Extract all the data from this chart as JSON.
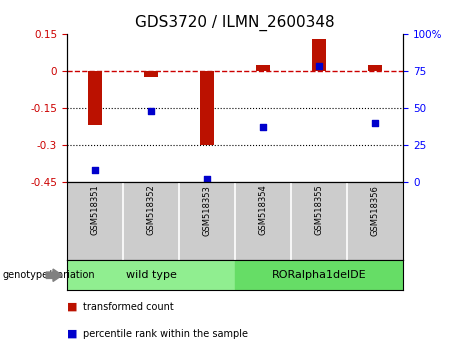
{
  "title": "GDS3720 / ILMN_2600348",
  "samples": [
    "GSM518351",
    "GSM518352",
    "GSM518353",
    "GSM518354",
    "GSM518355",
    "GSM518356"
  ],
  "group_labels": [
    "wild type",
    "RORalpha1delDE"
  ],
  "red_bars": [
    -0.22,
    -0.025,
    -0.3,
    0.025,
    0.13,
    0.025
  ],
  "blue_dots_pct": [
    8,
    48,
    2,
    37,
    78,
    40
  ],
  "left_ylim": [
    -0.45,
    0.15
  ],
  "left_yticks": [
    0.15,
    0.0,
    -0.15,
    -0.3,
    -0.45
  ],
  "left_ytick_labels": [
    "0.15",
    "0",
    "-0.15",
    "-0.3",
    "-0.45"
  ],
  "right_yticks": [
    0,
    25,
    50,
    75,
    100
  ],
  "right_ytick_labels": [
    "0",
    "25",
    "50",
    "75",
    "100%"
  ],
  "dotted_lines": [
    -0.15,
    -0.3
  ],
  "bar_color": "#BB1100",
  "dot_color": "#0000CC",
  "hline_color": "#CC0000",
  "legend_red_label": "transformed count",
  "legend_blue_label": "percentile rank within the sample",
  "group_label_prefix": "genotype/variation",
  "plot_bg": "#ffffff",
  "cell_bg": "#cccccc",
  "group_wt_color": "#90EE90",
  "group_mut_color": "#66DD66",
  "title_fontsize": 11,
  "tick_fontsize": 7.5,
  "label_fontsize": 7
}
